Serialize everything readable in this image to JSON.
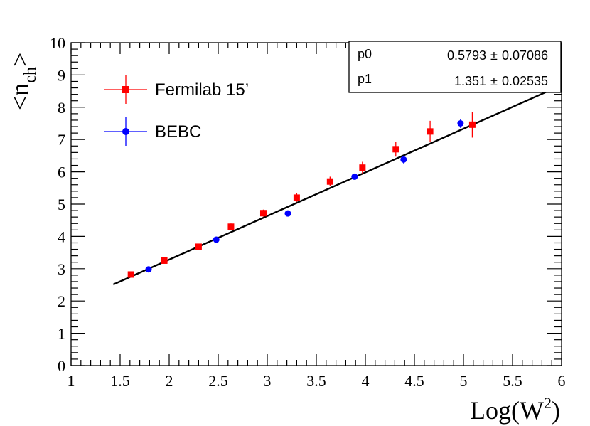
{
  "chart_data": {
    "type": "scatter",
    "xlabel": "Log(W",
    "xlabel_sup": "2",
    "xlabel_close": ")",
    "ylabel_base": "<n",
    "ylabel_sub": "ch",
    "ylabel_close": ">",
    "xlim": [
      1,
      6
    ],
    "ylim": [
      0,
      10
    ],
    "x_ticks": [
      "1",
      "1.5",
      "2",
      "2.5",
      "3",
      "3.5",
      "4",
      "4.5",
      "5",
      "5.5",
      "6"
    ],
    "y_ticks": [
      "0",
      "1",
      "2",
      "3",
      "4",
      "5",
      "6",
      "7",
      "8",
      "9",
      "10"
    ],
    "series": [
      {
        "name": "Fermilab 15’",
        "color": "#ff0000",
        "marker": "square",
        "points": [
          {
            "x": 1.61,
            "y": 2.82,
            "err": 0.07
          },
          {
            "x": 1.95,
            "y": 3.25,
            "err": 0.08
          },
          {
            "x": 2.3,
            "y": 3.68,
            "err": 0.08
          },
          {
            "x": 2.63,
            "y": 4.3,
            "err": 0.1
          },
          {
            "x": 2.96,
            "y": 4.72,
            "err": 0.11
          },
          {
            "x": 3.3,
            "y": 5.2,
            "err": 0.13
          },
          {
            "x": 3.64,
            "y": 5.7,
            "err": 0.15
          },
          {
            "x": 3.97,
            "y": 6.13,
            "err": 0.18
          },
          {
            "x": 4.31,
            "y": 6.7,
            "err": 0.23
          },
          {
            "x": 4.66,
            "y": 7.25,
            "err": 0.33
          },
          {
            "x": 5.09,
            "y": 7.46,
            "err": 0.4
          }
        ]
      },
      {
        "name": "BEBC",
        "color": "#0000ff",
        "marker": "circle",
        "points": [
          {
            "x": 1.79,
            "y": 2.98,
            "err": 0.05
          },
          {
            "x": 2.48,
            "y": 3.9,
            "err": 0.05
          },
          {
            "x": 3.21,
            "y": 4.71,
            "err": 0.06
          },
          {
            "x": 3.89,
            "y": 5.85,
            "err": 0.07
          },
          {
            "x": 4.39,
            "y": 6.38,
            "err": 0.12
          },
          {
            "x": 4.97,
            "y": 7.5,
            "err": 0.14
          }
        ]
      }
    ],
    "fit": {
      "p0": 0.5793,
      "p1": 1.351,
      "x_range": [
        1.43,
        5.86
      ],
      "color": "#000000"
    },
    "stats_box": {
      "rows": [
        {
          "name": "p0",
          "value": "0.5793",
          "pm": "±",
          "error": "0.07086"
        },
        {
          "name": "p1",
          "value": "1.351",
          "pm": "±",
          "error": "0.02535"
        }
      ]
    },
    "legend_position": "top-left"
  }
}
